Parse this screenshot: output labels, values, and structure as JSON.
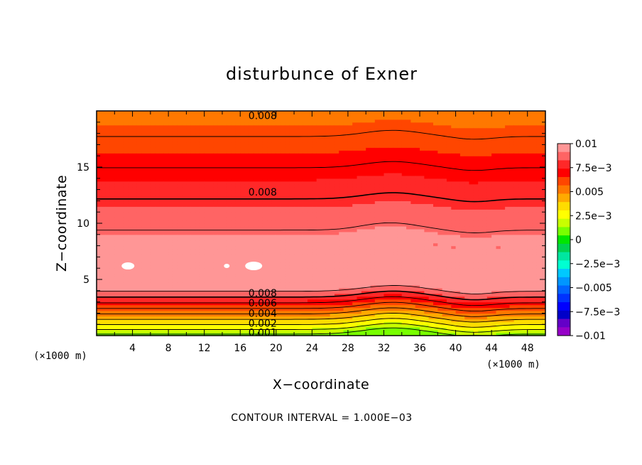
{
  "chart_data": {
    "type": "heatmap",
    "title": "disturbunce of Exner",
    "xlabel": "X−coordinate",
    "ylabel": "Z−coordinate",
    "x_unit_left": "(×1000 m)",
    "x_unit_right": "(×1000 m)",
    "xlim": [
      0,
      50
    ],
    "ylim": [
      0,
      20
    ],
    "x_ticks": [
      "4",
      "8",
      "12",
      "16",
      "20",
      "24",
      "28",
      "32",
      "36",
      "40",
      "44",
      "48"
    ],
    "y_ticks": [
      "5",
      "10",
      "15"
    ],
    "footnote": "CONTOUR INTERVAL = 1.000E−03",
    "contour_interval": 0.001,
    "contour_labels": [
      {
        "text": "0.008",
        "x": 18.5,
        "z": 19.6
      },
      {
        "text": "0.008",
        "x": 18.5,
        "z": 12.8
      },
      {
        "text": "0.008",
        "x": 18.5,
        "z": 3.8
      },
      {
        "text": "0.006",
        "x": 18.5,
        "z": 2.9
      },
      {
        "text": "0.004",
        "x": 18.5,
        "z": 2.0
      },
      {
        "text": "0.002",
        "x": 18.5,
        "z": 1.1
      },
      {
        "text": "0.001",
        "x": 18.5,
        "z": 0.3
      }
    ],
    "colorbar": {
      "labels": [
        "0.01",
        "7.5e−3",
        "0.005",
        "2.5e−3",
        "0",
        "−2.5e−3",
        "−0.005",
        "−7.5e−3",
        "−0.01"
      ],
      "colors": [
        "#ff9696",
        "#ff6464",
        "#ff2828",
        "#ff0000",
        "#ff4600",
        "#ff7800",
        "#ffaa00",
        "#ffdc00",
        "#ffff00",
        "#c8ff00",
        "#78ff00",
        "#00e600",
        "#00d250",
        "#00e6a0",
        "#00ffd2",
        "#00c8ff",
        "#0096ff",
        "#0064ff",
        "#0032ff",
        "#0000ff",
        "#0000c8",
        "#6400c8",
        "#9600c8"
      ]
    }
  }
}
